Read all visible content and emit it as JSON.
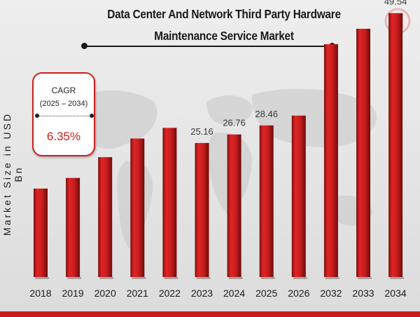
{
  "title_line_1": "Data Center And Network Third Party Hardware",
  "title_line_2": "Maintenance Service Market",
  "y_axis_label": "Market Size in USD Bn",
  "cagr": {
    "label": "CAGR",
    "period": "(2025 – 2034)",
    "value": "6.35%"
  },
  "colors": {
    "bar": "#c81d1d",
    "bar_dark": "#7a0f0f",
    "accent": "#cc1f1f"
  },
  "chart_data": {
    "type": "bar",
    "title": "Data Center And Network Third Party Hardware Maintenance Service Market",
    "ylabel": "Market Size in USD Bn",
    "xlabel": "",
    "categories": [
      "2018",
      "2019",
      "2020",
      "2021",
      "2022",
      "2023",
      "2024",
      "2025",
      "2026",
      "2032",
      "2033",
      "2034"
    ],
    "values": [
      16.6,
      18.6,
      22.5,
      26.0,
      28.0,
      25.16,
      26.76,
      28.46,
      30.3,
      43.7,
      46.6,
      49.54
    ],
    "data_labels": {
      "2023": "25.16",
      "2024": "26.76",
      "2025": "28.46",
      "2034": "49.54"
    },
    "ylim": [
      0,
      52
    ],
    "grid": false,
    "legend": "none"
  }
}
